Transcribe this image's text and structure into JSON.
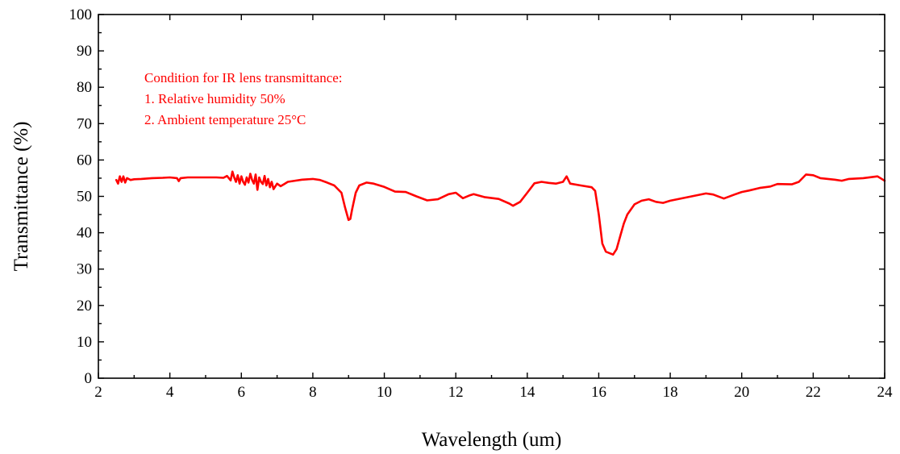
{
  "chart_data": {
    "type": "line",
    "xlabel": "Wavelength (um)",
    "ylabel": "Transmittance (%)",
    "xlim": [
      2,
      24
    ],
    "ylim": [
      0,
      100
    ],
    "xticks": [
      2,
      4,
      6,
      8,
      10,
      12,
      14,
      16,
      18,
      20,
      22,
      24
    ],
    "yticks": [
      0,
      10,
      20,
      30,
      40,
      50,
      60,
      70,
      80,
      90,
      100
    ],
    "grid": false,
    "line_color": "#ff0000",
    "annotation": {
      "color": "#ff0000",
      "lines": [
        "Condition for IR lens transmittance:",
        "1. Relative humidity 50%",
        "2. Ambient temperature 25°C"
      ]
    },
    "series": [
      {
        "x": [
          2.5,
          2.55,
          2.6,
          2.65,
          2.7,
          2.75,
          2.8,
          2.9,
          3.0,
          3.2,
          3.5,
          3.8,
          4.0,
          4.2,
          4.25,
          4.3,
          4.5,
          4.8,
          5.0,
          5.3,
          5.5,
          5.6,
          5.7,
          5.75,
          5.8,
          5.85,
          5.9,
          5.95,
          6.0,
          6.05,
          6.1,
          6.15,
          6.2,
          6.25,
          6.3,
          6.35,
          6.4,
          6.45,
          6.5,
          6.55,
          6.6,
          6.65,
          6.7,
          6.75,
          6.8,
          6.85,
          6.9,
          7.0,
          7.1,
          7.2,
          7.3,
          7.5,
          7.7,
          8.0,
          8.2,
          8.4,
          8.6,
          8.8,
          8.9,
          9.0,
          9.05,
          9.1,
          9.2,
          9.3,
          9.5,
          9.7,
          10.0,
          10.3,
          10.6,
          10.9,
          11.2,
          11.5,
          11.8,
          12.0,
          12.2,
          12.4,
          12.5,
          12.8,
          13.2,
          13.5,
          13.6,
          13.8,
          14.0,
          14.2,
          14.4,
          14.6,
          14.8,
          15.0,
          15.1,
          15.2,
          15.5,
          15.8,
          15.9,
          16.0,
          16.1,
          16.2,
          16.3,
          16.4,
          16.5,
          16.6,
          16.7,
          16.8,
          17.0,
          17.2,
          17.4,
          17.6,
          17.8,
          18.0,
          18.5,
          19.0,
          19.2,
          19.5,
          19.8,
          20.0,
          20.2,
          20.5,
          20.8,
          21.0,
          21.4,
          21.6,
          21.8,
          22.0,
          22.2,
          22.6,
          22.8,
          23.0,
          23.4,
          23.8,
          24.0
        ],
        "y": [
          54.5,
          53.5,
          55.5,
          54.0,
          55.5,
          53.8,
          55.0,
          54.5,
          54.7,
          54.8,
          55.0,
          55.1,
          55.2,
          55.0,
          54.2,
          55.0,
          55.2,
          55.2,
          55.2,
          55.2,
          55.1,
          55.6,
          54.4,
          56.8,
          55.2,
          54.0,
          55.8,
          53.5,
          55.5,
          54.0,
          53.2,
          55.2,
          53.8,
          56.2,
          54.5,
          53.5,
          56.0,
          51.8,
          55.2,
          54.0,
          53.4,
          55.6,
          53.0,
          54.8,
          52.5,
          54.0,
          52.0,
          53.5,
          52.8,
          53.4,
          54.0,
          54.3,
          54.6,
          54.8,
          54.5,
          53.8,
          53.0,
          51.0,
          47.0,
          43.5,
          43.8,
          46.5,
          51.0,
          53.0,
          53.8,
          53.5,
          52.6,
          51.3,
          51.2,
          50.0,
          48.9,
          49.2,
          50.6,
          51.0,
          49.5,
          50.3,
          50.6,
          49.8,
          49.3,
          48.0,
          47.4,
          48.5,
          51.0,
          53.6,
          54.0,
          53.7,
          53.5,
          54.0,
          55.5,
          53.5,
          53.0,
          52.5,
          51.5,
          45.0,
          37.0,
          34.8,
          34.4,
          34.0,
          35.5,
          39.0,
          42.5,
          45.0,
          47.8,
          48.8,
          49.2,
          48.5,
          48.2,
          48.8,
          49.8,
          50.8,
          50.5,
          49.4,
          50.5,
          51.2,
          51.6,
          52.3,
          52.7,
          53.4,
          53.3,
          54.0,
          56.0,
          55.8,
          55.0,
          54.6,
          54.3,
          54.8,
          55.0,
          55.5,
          54.3
        ]
      }
    ]
  }
}
